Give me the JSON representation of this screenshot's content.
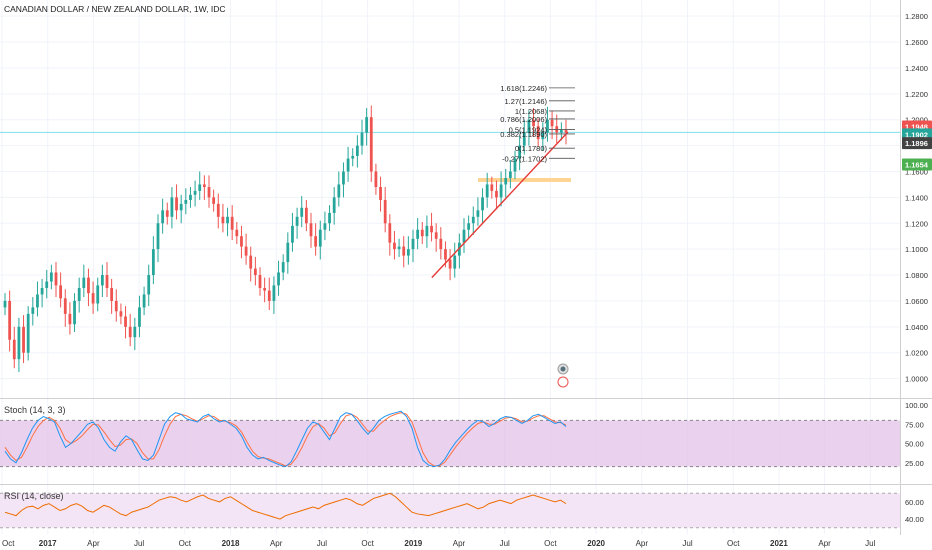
{
  "header": {
    "symbol_title": "CANADIAN DOLLAR / NEW ZEALAND DOLLAR, 1W, IDC"
  },
  "colors": {
    "up": "#26a69a",
    "down": "#ef5350",
    "trend": "#e53935",
    "hline": "#80deea",
    "zone": "#ffcc80",
    "stoch_band": "#e1bee7",
    "rsi_band": "#f3e5f5",
    "stoch_k": "#2196f3",
    "stoch_d": "#ff7043",
    "rsi_line": "#ef6c00",
    "price_label_red": "#ef5350",
    "price_label_teal": "#26a69a",
    "price_label_dark": "#424242",
    "price_label_green": "#4caf50"
  },
  "chart_data": {
    "type": "candlestick",
    "title": "CANADIAN DOLLAR / NEW ZEALAND DOLLAR, 1W, IDC",
    "price_axis": {
      "ylim": [
        0.985,
        1.2925
      ],
      "ticks": [
        "1.2800",
        "1.2600",
        "1.2400",
        "1.2200",
        "1.2000",
        "1.1800",
        "1.1600",
        "1.1400",
        "1.1200",
        "1.1000",
        "1.0800",
        "1.0600",
        "1.0400",
        "1.0200",
        "1.0000"
      ],
      "tick_values": [
        1.28,
        1.26,
        1.24,
        1.22,
        1.2,
        1.18,
        1.16,
        1.14,
        1.12,
        1.1,
        1.08,
        1.06,
        1.04,
        1.02,
        1.0
      ]
    },
    "time_axis": {
      "labels": [
        "Oct",
        "2017",
        "Apr",
        "Jul",
        "Oct",
        "2018",
        "Apr",
        "Jul",
        "Oct",
        "2019",
        "Apr",
        "Jul",
        "Oct",
        "2020",
        "Apr",
        "Jul",
        "Oct",
        "2021",
        "Apr",
        "Jul"
      ],
      "bold": [
        "2017",
        "2018",
        "2019",
        "2020",
        "2021"
      ]
    },
    "current_price_labels": [
      {
        "text": "1.1948",
        "value": 1.1948,
        "style": "price_label_red"
      },
      {
        "text": "1.1902",
        "value": 1.1902,
        "style": "price_label_teal"
      },
      {
        "text": "1.1896",
        "value": 1.1896,
        "style": "price_label_dark"
      },
      {
        "text": "1.1654",
        "value": 1.1654,
        "style": "price_label_green"
      }
    ],
    "horizontal_line": 1.1902,
    "support_zone": [
      1.1525,
      1.155
    ],
    "trendline": [
      {
        "t": 0.4798,
        "price": 1.078
      },
      {
        "t": 0.631,
        "price": 1.1905
      }
    ],
    "fibonacci": [
      {
        "label": "1.618(1.2246)",
        "value": 1.2246
      },
      {
        "label": "1.27(1.2146)",
        "value": 1.2146
      },
      {
        "label": "1(1.2068)",
        "value": 1.2068
      },
      {
        "label": "0.786(1.2006)",
        "value": 1.2006
      },
      {
        "label": "0.5(1.1924)",
        "value": 1.1924
      },
      {
        "label": "0.382(1.1890)",
        "value": 1.189
      },
      {
        "label": "0(1.1780)",
        "value": 1.178
      },
      {
        "label": "-0.27(1.1702)",
        "value": 1.1702
      }
    ],
    "candles_close": [
      1.06,
      1.03,
      1.015,
      1.04,
      1.02,
      1.05,
      1.055,
      1.065,
      1.07,
      1.075,
      1.082,
      1.072,
      1.062,
      1.05,
      1.042,
      1.06,
      1.07,
      1.078,
      1.066,
      1.058,
      1.072,
      1.08,
      1.07,
      1.06,
      1.052,
      1.048,
      1.04,
      1.032,
      1.04,
      1.055,
      1.065,
      1.08,
      1.1,
      1.12,
      1.13,
      1.125,
      1.14,
      1.13,
      1.135,
      1.138,
      1.142,
      1.145,
      1.15,
      1.148,
      1.14,
      1.135,
      1.125,
      1.12,
      1.125,
      1.115,
      1.11,
      1.102,
      1.095,
      1.085,
      1.08,
      1.07,
      1.068,
      1.06,
      1.072,
      1.082,
      1.09,
      1.105,
      1.118,
      1.125,
      1.132,
      1.12,
      1.11,
      1.102,
      1.115,
      1.12,
      1.128,
      1.14,
      1.15,
      1.16,
      1.17,
      1.172,
      1.18,
      1.19,
      1.202,
      1.16,
      1.148,
      1.138,
      1.12,
      1.105,
      1.1,
      1.102,
      1.095,
      1.1,
      1.108,
      1.115,
      1.11,
      1.118,
      1.113,
      1.108,
      1.1,
      1.092,
      1.085,
      1.095,
      1.105,
      1.115,
      1.12,
      1.125,
      1.13,
      1.14,
      1.15,
      1.145,
      1.14,
      1.15,
      1.155,
      1.16,
      1.17,
      1.18,
      1.19,
      1.2,
      1.195,
      1.185,
      1.19,
      1.2,
      1.195,
      1.19,
      1.192,
      1.19
    ],
    "stoch": {
      "label": "Stoch (14, 3, 3)",
      "ticks": [
        "100.00",
        "75.00",
        "50.00",
        "25.00"
      ],
      "tick_values": [
        100,
        75,
        50,
        25
      ],
      "band": [
        20,
        80
      ],
      "k": [
        40,
        30,
        25,
        38,
        55,
        70,
        80,
        85,
        82,
        78,
        60,
        45,
        50,
        58,
        66,
        75,
        78,
        70,
        55,
        45,
        40,
        52,
        60,
        55,
        42,
        30,
        28,
        35,
        55,
        75,
        85,
        90,
        88,
        82,
        80,
        78,
        85,
        88,
        82,
        78,
        80,
        75,
        70,
        60,
        45,
        35,
        30,
        32,
        28,
        25,
        22,
        20,
        26,
        40,
        55,
        70,
        78,
        75,
        65,
        55,
        70,
        85,
        90,
        88,
        80,
        70,
        62,
        70,
        80,
        85,
        88,
        90,
        92,
        85,
        70,
        45,
        28,
        22,
        20,
        22,
        30,
        42,
        52,
        60,
        68,
        75,
        80,
        78,
        72,
        76,
        82,
        85,
        84,
        80,
        76,
        80,
        86,
        88,
        84,
        80,
        76,
        78,
        72
      ],
      "d": [
        45,
        35,
        28,
        32,
        45,
        60,
        72,
        80,
        84,
        80,
        70,
        55,
        50,
        54,
        60,
        68,
        75,
        74,
        65,
        55,
        46,
        48,
        55,
        56,
        50,
        38,
        30,
        30,
        42,
        60,
        75,
        85,
        88,
        86,
        82,
        79,
        82,
        86,
        85,
        80,
        79,
        77,
        73,
        65,
        52,
        40,
        33,
        31,
        30,
        27,
        24,
        21,
        23,
        32,
        45,
        60,
        72,
        76,
        70,
        60,
        64,
        76,
        86,
        88,
        84,
        75,
        66,
        66,
        74,
        80,
        85,
        88,
        90,
        88,
        78,
        58,
        38,
        26,
        21,
        21,
        26,
        36,
        46,
        55,
        63,
        70,
        76,
        78,
        75,
        75,
        79,
        83,
        84,
        82,
        78,
        79,
        83,
        86,
        86,
        82,
        78,
        77,
        74
      ]
    },
    "rsi": {
      "label": "RSI (14, close)",
      "ticks": [
        "60.00",
        "40.00"
      ],
      "tick_values": [
        60,
        40
      ],
      "band": [
        30,
        70
      ],
      "values": [
        48,
        46,
        44,
        50,
        54,
        55,
        52,
        56,
        58,
        54,
        50,
        52,
        56,
        58,
        55,
        50,
        48,
        52,
        56,
        54,
        50,
        46,
        44,
        48,
        50,
        52,
        54,
        58,
        62,
        64,
        66,
        65,
        62,
        60,
        63,
        66,
        68,
        64,
        62,
        60,
        64,
        66,
        62,
        58,
        54,
        50,
        48,
        46,
        44,
        42,
        40,
        44,
        46,
        48,
        50,
        52,
        54,
        52,
        56,
        58,
        60,
        62,
        64,
        62,
        58,
        56,
        60,
        64,
        66,
        68,
        70,
        66,
        60,
        54,
        48,
        46,
        45,
        44,
        46,
        48,
        50,
        52,
        54,
        56,
        58,
        55,
        52,
        54,
        58,
        60,
        62,
        60,
        58,
        62,
        64,
        66,
        68,
        66,
        64,
        62,
        60,
        62,
        58
      ]
    }
  }
}
